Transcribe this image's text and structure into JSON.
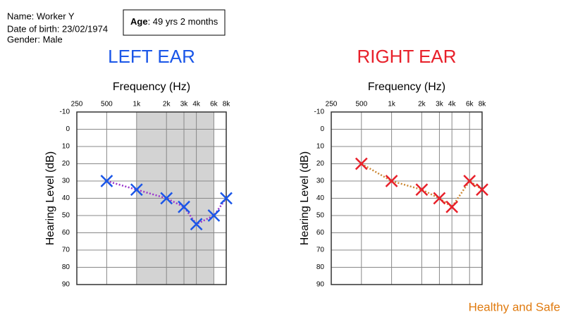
{
  "header": {
    "name": "Name: Worker Y",
    "dob": "Date of birth: 23/02/1974",
    "gender": "Gender: Male",
    "age_label": "Age",
    "age_value": ": 49 yrs 2 months"
  },
  "footer": "Healthy and Safe",
  "chart_data": [
    {
      "type": "line",
      "title": "LEFT EAR",
      "title_color": "#1a56e8",
      "xlabel": "Frequency (Hz)",
      "ylabel": "Hearing Level (dB)",
      "xscale": "log",
      "xlim": [
        250,
        8000
      ],
      "ylim": [
        -10,
        90
      ],
      "y_inverted": true,
      "grid": true,
      "xticks": [
        250,
        500,
        {
          "value": 1000,
          "label": "1k"
        },
        {
          "value": 2000,
          "label": "2k"
        },
        {
          "value": 3000,
          "label": "3k"
        },
        {
          "value": 4000,
          "label": "4k"
        },
        {
          "value": 6000,
          "label": "6k"
        },
        {
          "value": 8000,
          "label": "8k"
        }
      ],
      "yticks": [
        -10,
        0,
        10,
        20,
        30,
        40,
        50,
        60,
        70,
        80,
        90
      ],
      "shade": [
        1000,
        6000
      ],
      "shade_color": "#d3d3d3",
      "x": [
        500,
        1000,
        2000,
        3000,
        4000,
        6000,
        8000
      ],
      "series": [
        {
          "color": "#1a56e8",
          "line_color": "#9933cc",
          "marker": "x",
          "values": [
            30,
            35,
            40,
            45,
            55,
            50,
            40
          ]
        }
      ]
    },
    {
      "type": "line",
      "title": "RIGHT EAR",
      "title_color": "#e8202a",
      "xlabel": "Frequency (Hz)",
      "ylabel": "Hearing Level (dB)",
      "xscale": "log",
      "xlim": [
        250,
        8000
      ],
      "ylim": [
        -10,
        90
      ],
      "y_inverted": true,
      "grid": true,
      "xticks": [
        250,
        500,
        {
          "value": 1000,
          "label": "1k"
        },
        {
          "value": 2000,
          "label": "2k"
        },
        {
          "value": 3000,
          "label": "3k"
        },
        {
          "value": 4000,
          "label": "4k"
        },
        {
          "value": 6000,
          "label": "6k"
        },
        {
          "value": 8000,
          "label": "8k"
        }
      ],
      "yticks": [
        -10,
        0,
        10,
        20,
        30,
        40,
        50,
        60,
        70,
        80,
        90
      ],
      "x": [
        500,
        1000,
        2000,
        3000,
        4000,
        6000,
        8000
      ],
      "series": [
        {
          "color": "#e8202a",
          "line_color": "#cc8833",
          "marker": "x",
          "values": [
            20,
            30,
            35,
            40,
            45,
            30,
            35
          ]
        }
      ]
    }
  ]
}
